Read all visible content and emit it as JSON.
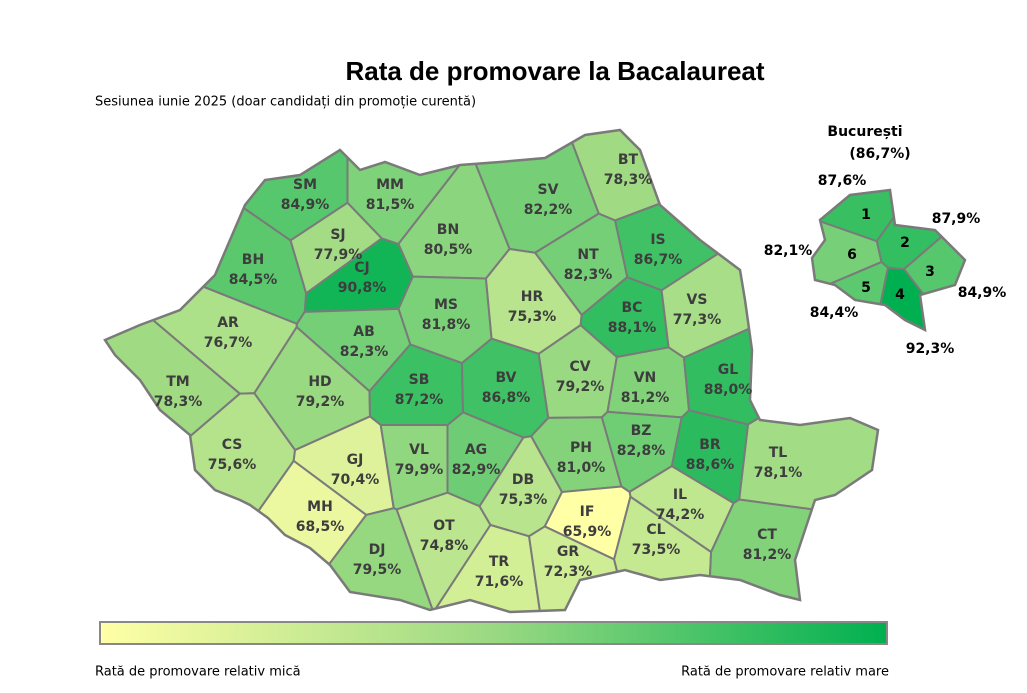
{
  "title": "Rata de promovare la Bacalaureat",
  "subtitle": "Sesiunea iunie 2025 (doar candidați din promoție curentă)",
  "counties": [
    {
      "code": "SM",
      "value": 84.9,
      "value_label": "84,9%"
    },
    {
      "code": "MM",
      "value": 81.5,
      "value_label": "81,5%"
    },
    {
      "code": "BT",
      "value": 78.3,
      "value_label": "78,3%"
    },
    {
      "code": "SV",
      "value": 82.2,
      "value_label": "82,2%"
    },
    {
      "code": "SJ",
      "value": 77.9,
      "value_label": "77,9%"
    },
    {
      "code": "BN",
      "value": 80.5,
      "value_label": "80,5%"
    },
    {
      "code": "CJ",
      "value": 90.8,
      "value_label": "90,8%"
    },
    {
      "code": "BH",
      "value": 84.5,
      "value_label": "84,5%"
    },
    {
      "code": "IS",
      "value": 86.7,
      "value_label": "86,7%"
    },
    {
      "code": "NT",
      "value": 82.3,
      "value_label": "82,3%"
    },
    {
      "code": "MS",
      "value": 81.8,
      "value_label": "81,8%"
    },
    {
      "code": "HR",
      "value": 75.3,
      "value_label": "75,3%"
    },
    {
      "code": "BC",
      "value": 88.1,
      "value_label": "88,1%"
    },
    {
      "code": "VS",
      "value": 77.3,
      "value_label": "77,3%"
    },
    {
      "code": "AR",
      "value": 76.7,
      "value_label": "76,7%"
    },
    {
      "code": "AB",
      "value": 82.3,
      "value_label": "82,3%"
    },
    {
      "code": "TM",
      "value": 78.3,
      "value_label": "78,3%"
    },
    {
      "code": "HD",
      "value": 79.2,
      "value_label": "79,2%"
    },
    {
      "code": "SB",
      "value": 87.2,
      "value_label": "87,2%"
    },
    {
      "code": "BV",
      "value": 86.8,
      "value_label": "86,8%"
    },
    {
      "code": "CV",
      "value": 79.2,
      "value_label": "79,2%"
    },
    {
      "code": "VN",
      "value": 81.2,
      "value_label": "81,2%"
    },
    {
      "code": "GL",
      "value": 88.0,
      "value_label": "88,0%"
    },
    {
      "code": "CS",
      "value": 75.6,
      "value_label": "75,6%"
    },
    {
      "code": "GJ",
      "value": 70.4,
      "value_label": "70,4%"
    },
    {
      "code": "VL",
      "value": 79.9,
      "value_label": "79,9%"
    },
    {
      "code": "AG",
      "value": 82.9,
      "value_label": "82,9%"
    },
    {
      "code": "PH",
      "value": 81.0,
      "value_label": "81,0%"
    },
    {
      "code": "BZ",
      "value": 82.8,
      "value_label": "82,8%"
    },
    {
      "code": "BR",
      "value": 88.6,
      "value_label": "88,6%"
    },
    {
      "code": "TL",
      "value": 78.1,
      "value_label": "78,1%"
    },
    {
      "code": "MH",
      "value": 68.5,
      "value_label": "68,5%"
    },
    {
      "code": "DJ",
      "value": 79.5,
      "value_label": "79,5%"
    },
    {
      "code": "OT",
      "value": 74.8,
      "value_label": "74,8%"
    },
    {
      "code": "DB",
      "value": 75.3,
      "value_label": "75,3%"
    },
    {
      "code": "IL",
      "value": 74.2,
      "value_label": "74,2%"
    },
    {
      "code": "IF",
      "value": 65.9,
      "value_label": "65,9%"
    },
    {
      "code": "TR",
      "value": 71.6,
      "value_label": "71,6%"
    },
    {
      "code": "GR",
      "value": 72.3,
      "value_label": "72,3%"
    },
    {
      "code": "CL",
      "value": 73.5,
      "value_label": "73,5%"
    },
    {
      "code": "CT",
      "value": 81.2,
      "value_label": "81,2%"
    }
  ],
  "bucharest": {
    "title": "București",
    "value": 86.7,
    "value_label": "(86,7%)",
    "sectors": [
      {
        "label": "1",
        "value": 87.6,
        "value_label": "87,6%"
      },
      {
        "label": "2",
        "value": 87.9,
        "value_label": "87,9%"
      },
      {
        "label": "3",
        "value": 84.9,
        "value_label": "84,9%"
      },
      {
        "label": "4",
        "value": 92.3,
        "value_label": "92,3%"
      },
      {
        "label": "5",
        "value": 84.4,
        "value_label": "84,4%"
      },
      {
        "label": "6",
        "value": 82.1,
        "value_label": "82,1%"
      }
    ]
  },
  "legend": {
    "low_label": "Rată de promovare relativ mică",
    "high_label": "Rată de promovare relativ mare",
    "colors": [
      "#ffffa6",
      "#9ad982",
      "#00b050"
    ]
  }
}
